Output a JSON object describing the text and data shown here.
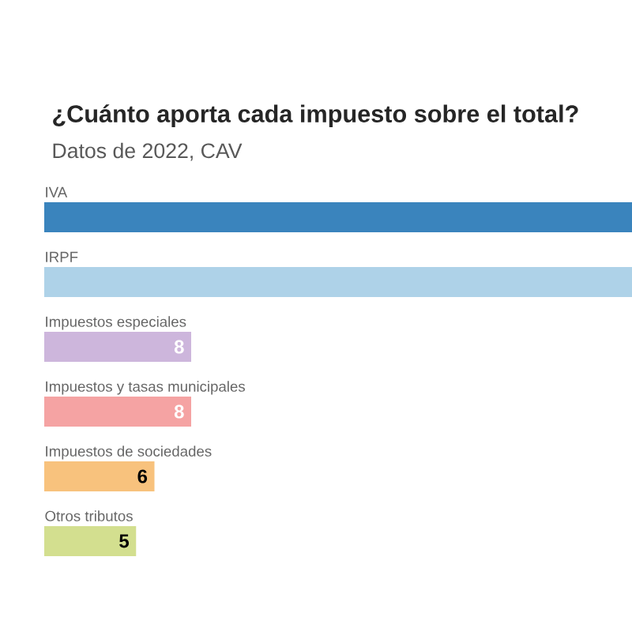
{
  "chart_data": {
    "type": "bar",
    "orientation": "horizontal",
    "title": "¿Cuánto aporta cada impuesto sobre el total?",
    "subtitle": "Datos de 2022, CAV",
    "categories": [
      "IVA",
      "IRPF",
      "Impuestos especiales",
      "Impuestos y tasas municipales",
      "Impuestos de sociedades",
      "Otros tributos"
    ],
    "values": [
      32,
      32,
      8,
      8,
      6,
      5
    ],
    "value_labels": [
      null,
      null,
      "8",
      "8",
      "6",
      "5"
    ],
    "colors": [
      "#3a84bd",
      "#aed2e8",
      "#cdb6dc",
      "#f5a3a3",
      "#f8c27d",
      "#d3df8f"
    ],
    "xlim": [
      0,
      32
    ]
  }
}
